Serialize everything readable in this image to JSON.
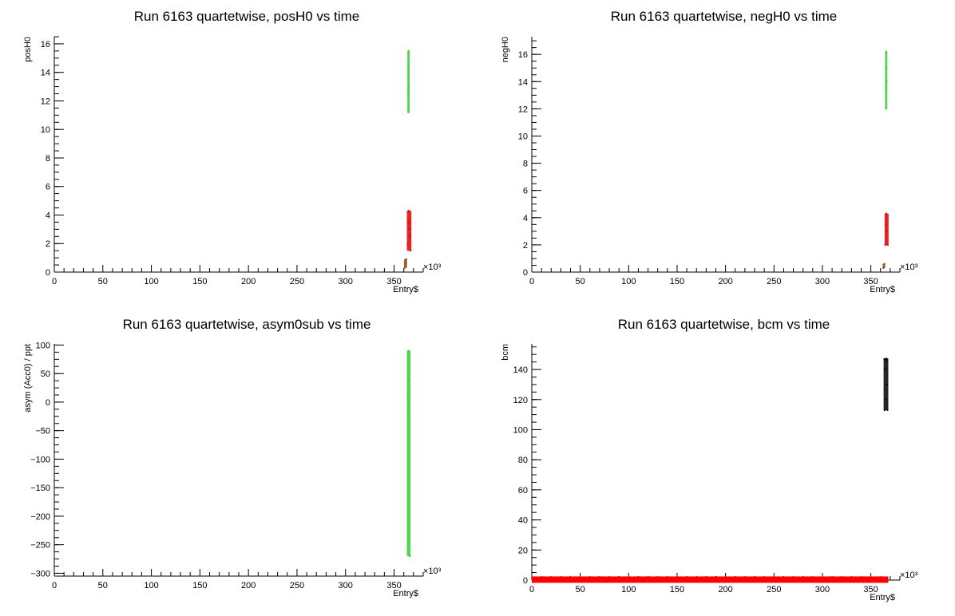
{
  "chart_data": [
    {
      "type": "scatter",
      "title": "Run 6163 quartetwise, posH0 vs time",
      "xlabel": "Entry$",
      "ylabel": "posH0",
      "x_multiplier": "×10³",
      "xlim": [
        0,
        380
      ],
      "ylim": [
        0,
        16.5
      ],
      "xticks": [
        "0",
        "50",
        "100",
        "150",
        "200",
        "250",
        "300",
        "350"
      ],
      "yticks": [
        "0",
        "2",
        "4",
        "6",
        "8",
        "10",
        "12",
        "14",
        "16"
      ],
      "series": [
        {
          "color": "#33cc33",
          "points": [
            [
              364.5,
              12.5
            ],
            [
              364.8,
              14.0
            ],
            [
              365.0,
              15.5
            ],
            [
              365.2,
              13.0
            ],
            [
              364.7,
              11.2
            ],
            [
              365.1,
              14.5
            ]
          ]
        },
        {
          "color": "#dd0000",
          "points": [
            [
              364.0,
              2.0
            ],
            [
              364.5,
              3.5
            ],
            [
              365.0,
              4.3
            ],
            [
              365.5,
              3.0
            ],
            [
              366.5,
              2.5
            ],
            [
              367.0,
              1.5
            ]
          ]
        },
        {
          "color": "#8b4513",
          "points": [
            [
              361.0,
              0.3
            ],
            [
              362.0,
              0.6
            ],
            [
              362.5,
              0.9
            ]
          ]
        }
      ]
    },
    {
      "type": "scatter",
      "title": "Run 6163 quartetwise, negH0 vs time",
      "xlabel": "Entry$",
      "ylabel": "negH0",
      "x_multiplier": "×10³",
      "xlim": [
        0,
        380
      ],
      "ylim": [
        0,
        17.3
      ],
      "xticks": [
        "0",
        "50",
        "100",
        "150",
        "200",
        "250",
        "300",
        "350"
      ],
      "yticks": [
        "0",
        "2",
        "4",
        "6",
        "8",
        "10",
        "12",
        "14",
        "16"
      ],
      "series": [
        {
          "color": "#33cc33",
          "points": [
            [
              365.5,
              13.5
            ],
            [
              365.7,
              15.0
            ],
            [
              366.0,
              16.2
            ],
            [
              366.2,
              14.0
            ],
            [
              365.6,
              12.0
            ]
          ]
        },
        {
          "color": "#dd0000",
          "points": [
            [
              365.0,
              2.0
            ],
            [
              365.5,
              3.5
            ],
            [
              366.0,
              4.3
            ],
            [
              366.5,
              3.0
            ],
            [
              367.5,
              2.0
            ]
          ]
        },
        {
          "color": "#8b4513",
          "points": [
            [
              363.0,
              0.3
            ],
            [
              364.0,
              0.6
            ]
          ]
        }
      ]
    },
    {
      "type": "scatter",
      "title": "Run 6163 quartetwise, asym0sub vs time",
      "xlabel": "Entry$",
      "ylabel": "asym (Acc0) / ppt",
      "x_multiplier": "×10³",
      "xlim": [
        0,
        380
      ],
      "ylim": [
        -305,
        102
      ],
      "xticks": [
        "0",
        "50",
        "100",
        "150",
        "200",
        "250",
        "300",
        "350"
      ],
      "yticks": [
        "100",
        "50",
        "0",
        "−50",
        "−100",
        "−150",
        "−200",
        "−250",
        "−300"
      ],
      "series": [
        {
          "color": "#33cc33",
          "points": [
            [
              364.0,
              10.0
            ],
            [
              364.5,
              -10.0
            ],
            [
              365.0,
              90.0
            ],
            [
              365.2,
              40.0
            ],
            [
              365.5,
              -60.0
            ],
            [
              365.8,
              -150.0
            ],
            [
              366.0,
              -220.0
            ],
            [
              366.1,
              -270.0
            ],
            [
              364.8,
              0.0
            ]
          ]
        }
      ]
    },
    {
      "type": "scatter",
      "title": "Run 6163 quartetwise, bcm vs time",
      "xlabel": "Entry$",
      "ylabel": "bcm",
      "x_multiplier": "×10³",
      "xlim": [
        0,
        380
      ],
      "ylim": [
        0,
        157
      ],
      "xticks": [
        "0",
        "50",
        "100",
        "150",
        "200",
        "250",
        "300",
        "350"
      ],
      "yticks": [
        "0",
        "20",
        "40",
        "60",
        "80",
        "100",
        "120",
        "140"
      ],
      "series": [
        {
          "color": "#ff0000",
          "band": [
            0,
            368
          ],
          "value": 0.3
        },
        {
          "color": "#000000",
          "points": [
            [
              364.0,
              147.0
            ],
            [
              365.0,
              146.5
            ],
            [
              366.0,
              147.2
            ],
            [
              367.0,
              146.8
            ],
            [
              364.5,
              140.0
            ],
            [
              366.5,
              130.0
            ],
            [
              365.5,
              120.0
            ],
            [
              364.2,
              113.0
            ],
            [
              367.2,
              113.0
            ]
          ]
        }
      ]
    }
  ]
}
